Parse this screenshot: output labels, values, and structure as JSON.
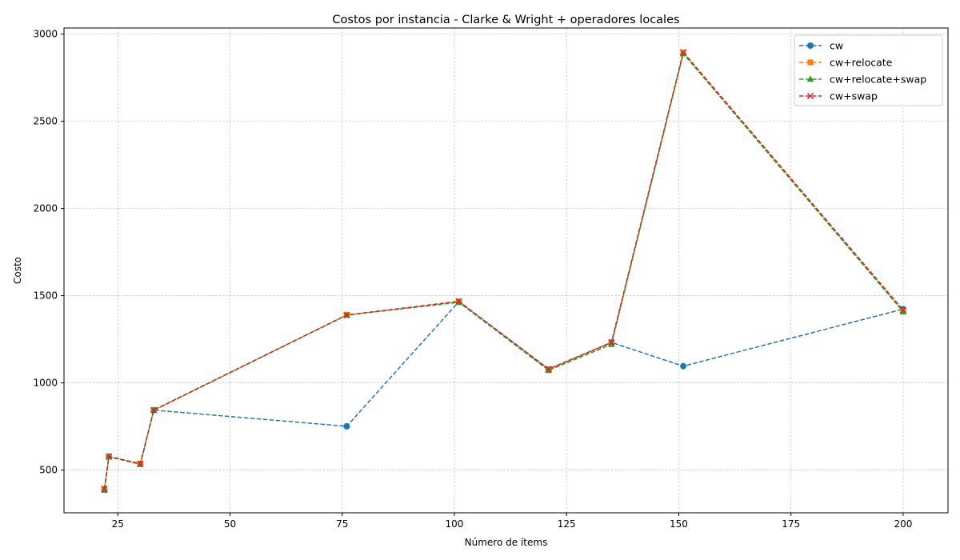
{
  "chart_data": {
    "type": "line",
    "title": "Costos por instancia - Clarke & Wright + operadores locales",
    "xlabel": "Número de ítems",
    "ylabel": "Costo",
    "xlim": [
      13,
      210
    ],
    "ylim": [
      255,
      3035
    ],
    "xticks": [
      25,
      50,
      75,
      100,
      125,
      150,
      175,
      200
    ],
    "yticks": [
      500,
      1000,
      1500,
      2000,
      2500,
      3000
    ],
    "grid": true,
    "legend_position": "top-right",
    "x": [
      22,
      23,
      30,
      33,
      76,
      101,
      121,
      135,
      151,
      200
    ],
    "series": [
      {
        "name": "cw",
        "color": "#1f77b4",
        "marker": "circle",
        "values": [
          390,
          578,
          536,
          844,
          751,
          1466,
          1077,
          1232,
          1096,
          1423
        ]
      },
      {
        "name": "cw+relocate",
        "color": "#ff7f0e",
        "marker": "square",
        "values": [
          390,
          578,
          536,
          844,
          1389,
          1466,
          1077,
          1230,
          2892,
          1412
        ]
      },
      {
        "name": "cw+relocate+swap",
        "color": "#2ca02c",
        "marker": "triangle",
        "values": [
          385,
          576,
          533,
          842,
          1389,
          1462,
          1072,
          1221,
          2888,
          1408
        ]
      },
      {
        "name": "cw+swap",
        "color": "#d62728",
        "marker": "x",
        "values": [
          393,
          578,
          536,
          844,
          1389,
          1468,
          1080,
          1232,
          2897,
          1418
        ]
      }
    ]
  }
}
